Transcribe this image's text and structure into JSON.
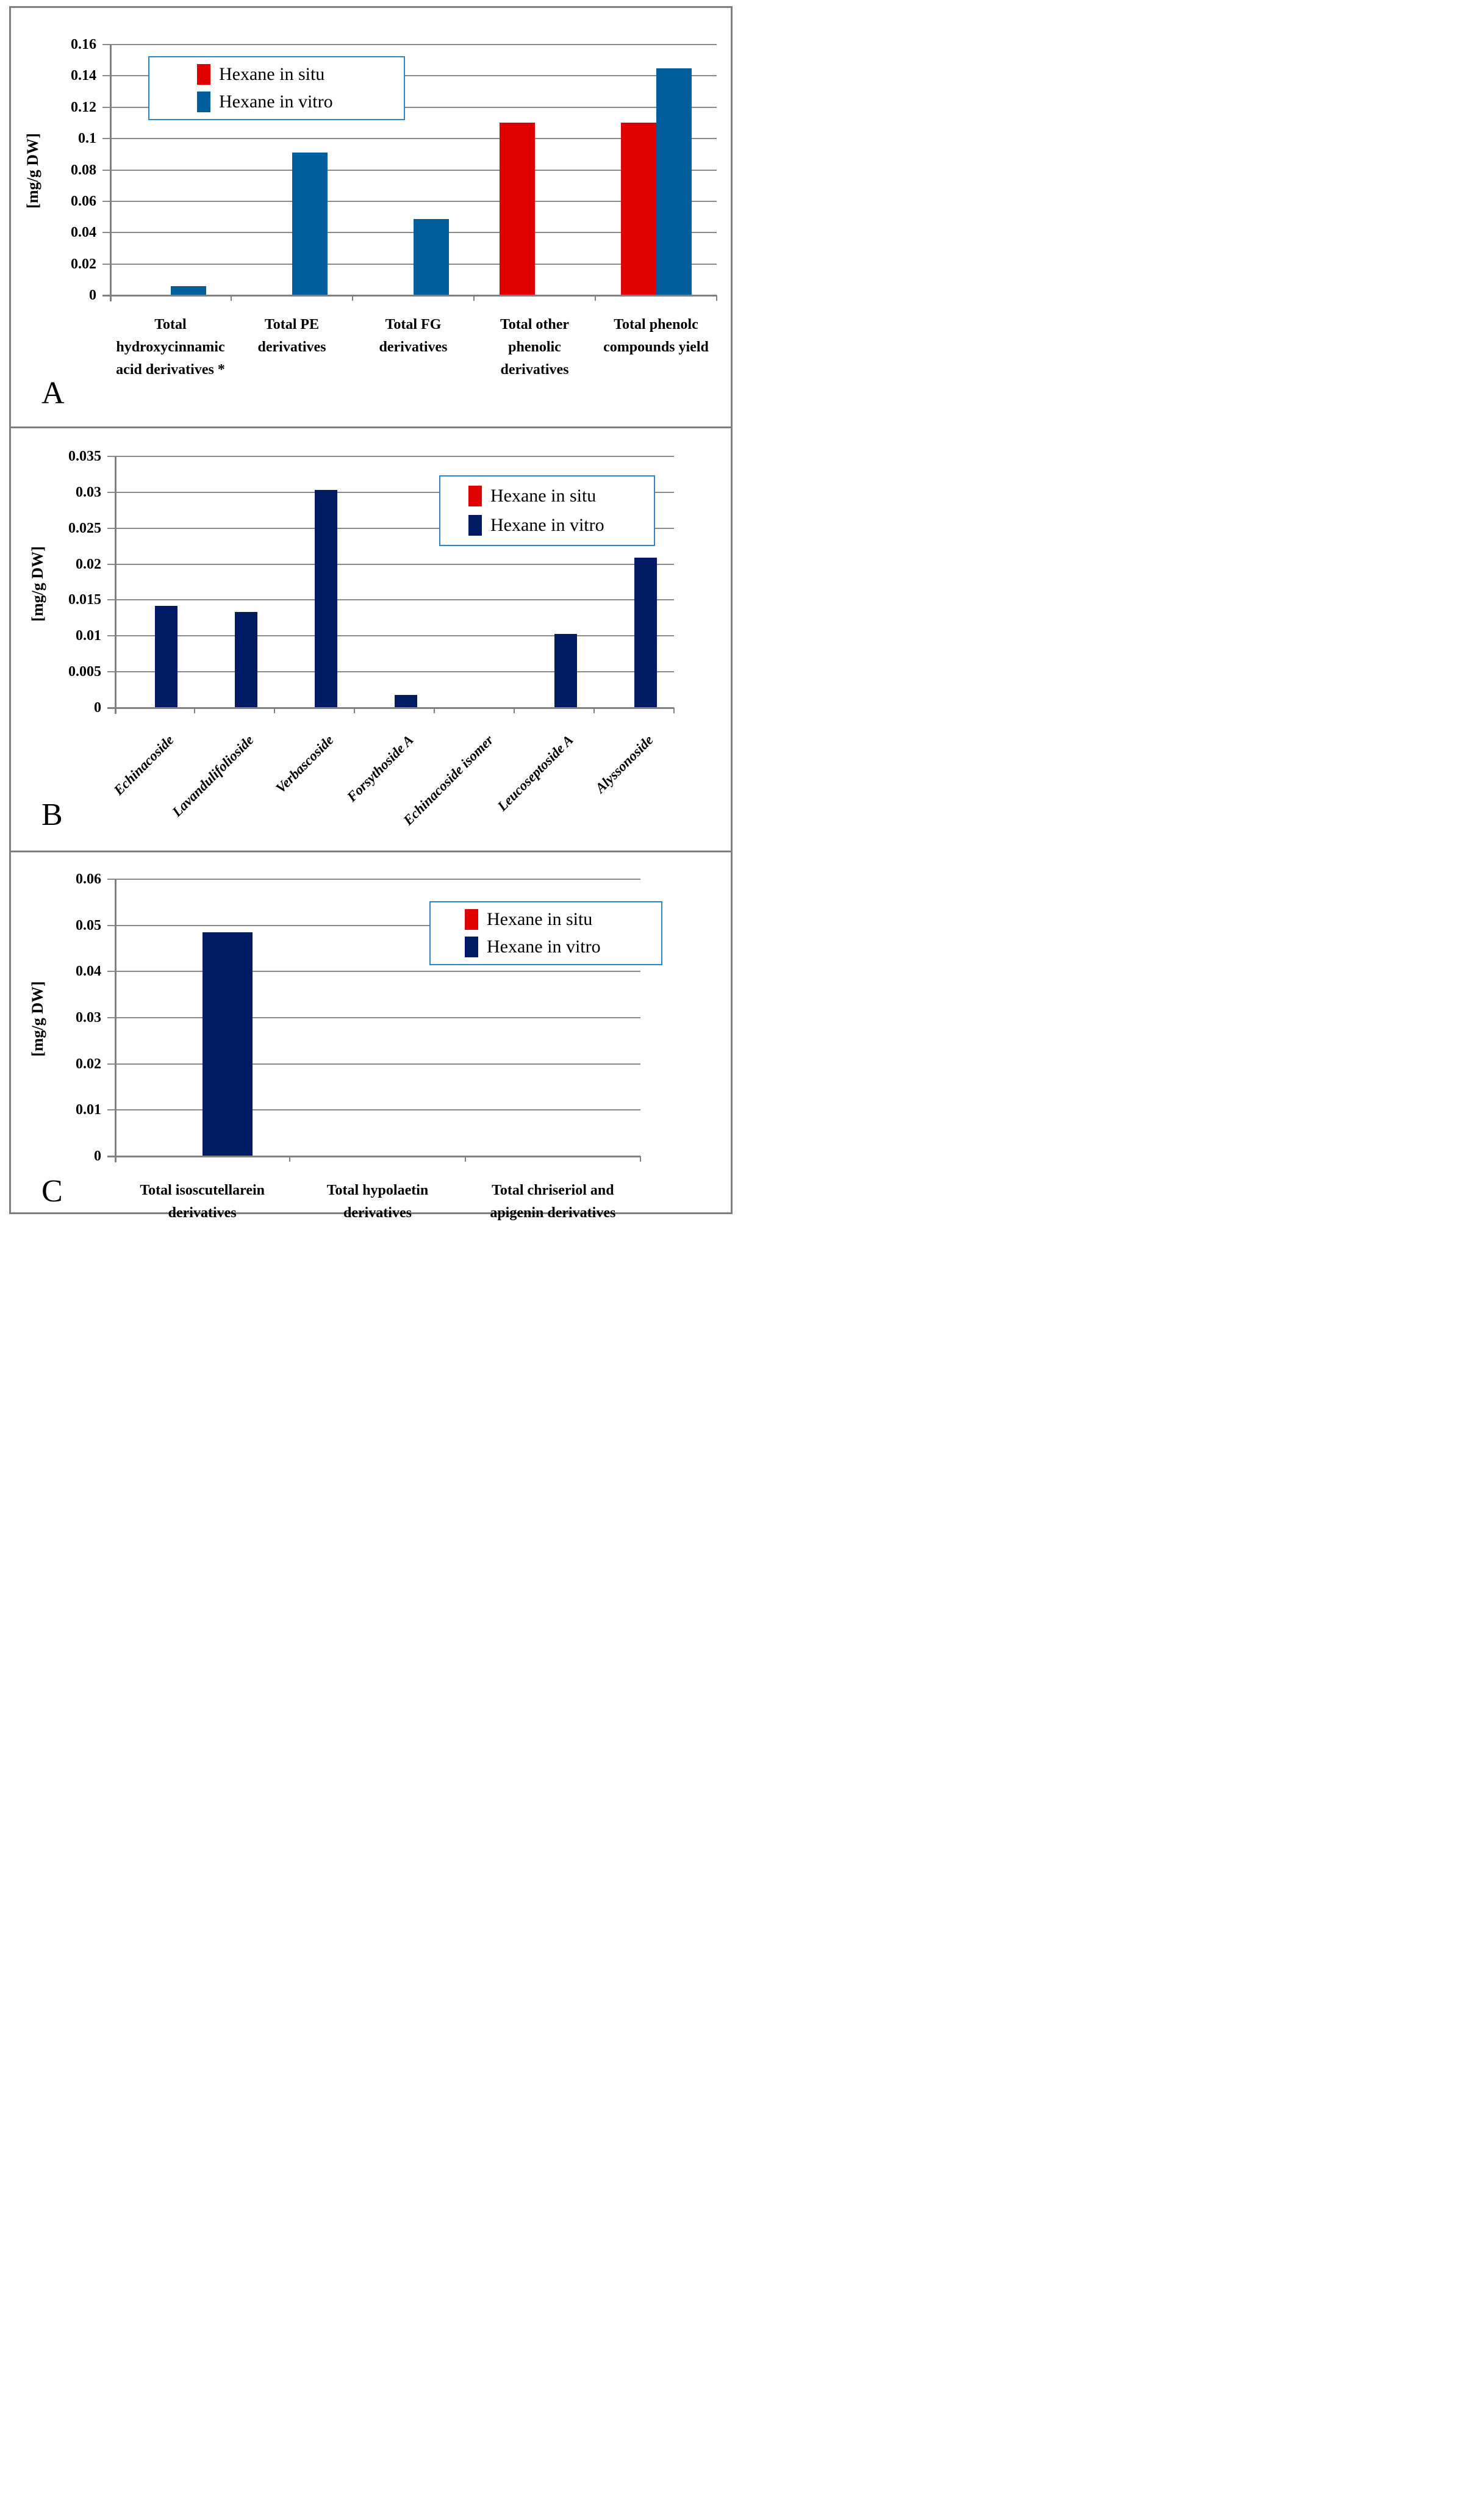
{
  "figure": {
    "description_visible_text_only": true,
    "grid_color": "#8a8a8a",
    "frame_color": "#7f7f7f",
    "legend_border_color": "#2e86c8"
  },
  "chart_data": [
    {
      "panel_label": "A",
      "type": "bar",
      "title": "",
      "xlabel": "",
      "ylabel": "[mg/g DW]",
      "ylim": [
        0,
        0.16
      ],
      "grid": true,
      "legend_position": "top-left-of-plot",
      "yticks": [
        "0",
        "0.02",
        "0.04",
        "0.06",
        "0.08",
        "0.1",
        "0.12",
        "0.14",
        "0.16"
      ],
      "categories": [
        "Total hydroxycinnamic acid derivatives *",
        "Total PE derivatives",
        "Total FG derivatives",
        "Total other phenolic derivatives",
        "Total phenolc compounds yield"
      ],
      "series": [
        {
          "name": "Hexane in situ",
          "color": "#e00000",
          "values": [
            0,
            0,
            0,
            0.11,
            0.11
          ]
        },
        {
          "name": "Hexane in vitro",
          "color": "#015e9c",
          "values": [
            0.006,
            0.091,
            0.0485,
            0,
            0.145
          ]
        }
      ]
    },
    {
      "panel_label": "B",
      "type": "bar",
      "title": "",
      "xlabel": "",
      "ylabel": "[mg/g DW]",
      "ylim": [
        0,
        0.035
      ],
      "grid": true,
      "legend_position": "top-right-of-plot",
      "yticks": [
        "0",
        "0.005",
        "0.01",
        "0.015",
        "0.02",
        "0.025",
        "0.03",
        "0.035"
      ],
      "categories": [
        "Echinacoside",
        "Lavandulifolioside",
        "Verbascoside",
        "Forsythoside A",
        "Echinacoside isomer",
        "Leucoseptoside A",
        "Alyssonoside"
      ],
      "series": [
        {
          "name": "Hexane in situ",
          "color": "#e00000",
          "values": [
            0,
            0,
            0,
            0,
            0,
            0,
            0
          ]
        },
        {
          "name": "Hexane in vitro",
          "color": "#001b63",
          "values": [
            0.0142,
            0.0133,
            0.0303,
            0.0018,
            0,
            0.0103,
            0.0209
          ]
        }
      ]
    },
    {
      "panel_label": "C",
      "type": "bar",
      "title": "",
      "xlabel": "",
      "ylabel": "[mg/g DW]",
      "ylim": [
        0,
        0.06
      ],
      "grid": true,
      "legend_position": "top-right-of-plot",
      "yticks": [
        "0",
        "0.01",
        "0.02",
        "0.03",
        "0.04",
        "0.05",
        "0.06"
      ],
      "categories": [
        "Total isoscutellarein derivatives",
        "Total hypolaetin derivatives",
        "Total chriseriol and apigenin derivatives"
      ],
      "series": [
        {
          "name": "Hexane in situ",
          "color": "#e00000",
          "values": [
            0,
            0,
            0
          ]
        },
        {
          "name": "Hexane in vitro",
          "color": "#001b63",
          "values": [
            0.0485,
            0,
            0
          ]
        }
      ]
    }
  ]
}
